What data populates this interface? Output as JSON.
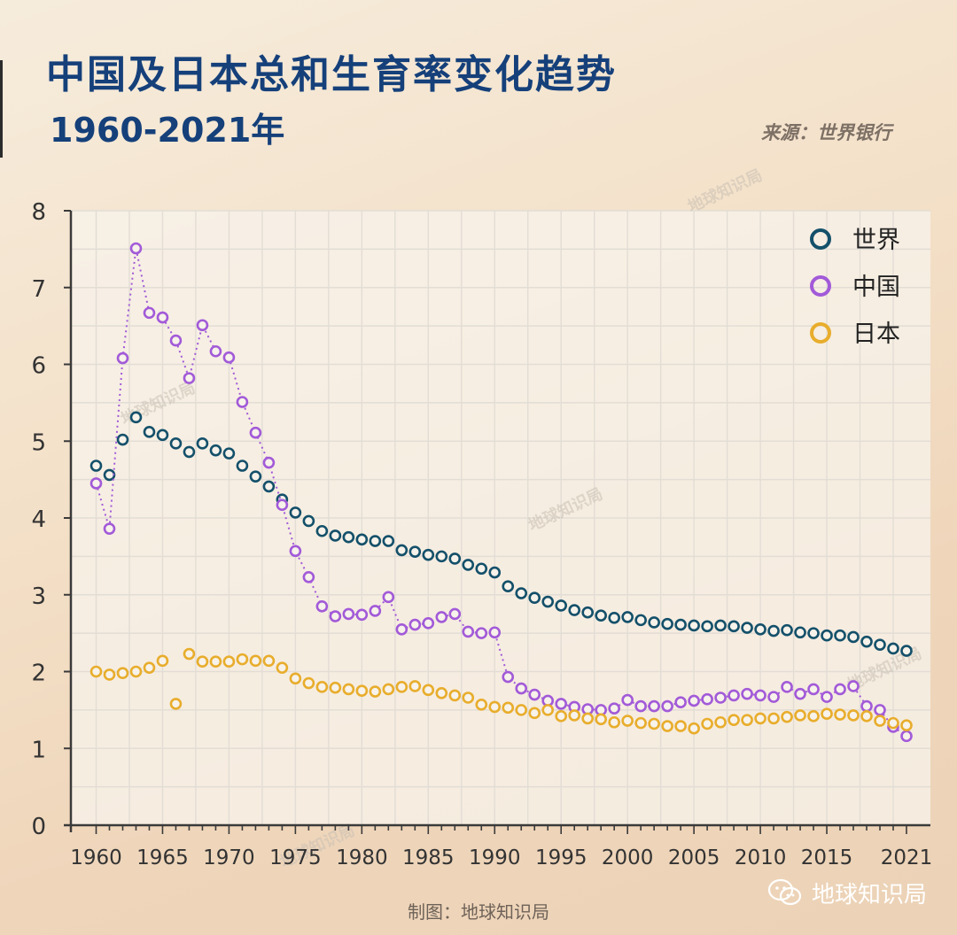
{
  "header": {
    "title": "中国及日本总和生育率变化趋势",
    "subtitle": "1960-2021年",
    "source": "来源：世界银行"
  },
  "footer": {
    "credit": "制图：地球知识局",
    "brand": "地球知识局"
  },
  "watermark": "地球知识局",
  "colors": {
    "world": "#14506a",
    "china": "#a25ad8",
    "japan": "#e8ad2c",
    "grid": "#e2ddd5",
    "axis": "#3a3a3a",
    "title": "#15407a"
  },
  "chart_data": {
    "type": "scatter",
    "title": "中国及日本总和生育率变化趋势",
    "subtitle": "1960-2021年",
    "xlabel": "",
    "ylabel": "",
    "xlim": [
      1958,
      2022
    ],
    "ylim": [
      0,
      8
    ],
    "x_ticks": [
      1960,
      1965,
      1970,
      1975,
      1980,
      1985,
      1990,
      1995,
      2000,
      2005,
      2010,
      2015,
      2021
    ],
    "x_tick_labels": [
      "1960",
      "1965",
      "1970",
      "1975",
      "1980",
      "1985",
      "1990",
      "1995",
      "2000",
      "2005",
      "2010",
      "2015",
      "2021"
    ],
    "y_ticks": [
      0,
      1,
      2,
      3,
      4,
      5,
      6,
      7,
      8
    ],
    "y_tick_labels": [
      "0",
      "1",
      "2",
      "3",
      "4",
      "5",
      "6",
      "7",
      "8"
    ],
    "grid": true,
    "legend_position": "top-right",
    "x": [
      1960,
      1961,
      1962,
      1963,
      1964,
      1965,
      1966,
      1967,
      1968,
      1969,
      1970,
      1971,
      1972,
      1973,
      1974,
      1975,
      1976,
      1977,
      1978,
      1979,
      1980,
      1981,
      1982,
      1983,
      1984,
      1985,
      1986,
      1987,
      1988,
      1989,
      1990,
      1991,
      1992,
      1993,
      1994,
      1995,
      1996,
      1997,
      1998,
      1999,
      2000,
      2001,
      2002,
      2003,
      2004,
      2005,
      2006,
      2007,
      2008,
      2009,
      2010,
      2011,
      2012,
      2013,
      2014,
      2015,
      2016,
      2017,
      2018,
      2019,
      2020,
      2021
    ],
    "series": [
      {
        "name": "世界",
        "key": "world",
        "values": [
          4.68,
          4.56,
          5.02,
          5.31,
          5.12,
          5.08,
          4.97,
          4.86,
          4.97,
          4.88,
          4.84,
          4.68,
          4.54,
          4.41,
          4.24,
          4.07,
          3.96,
          3.83,
          3.77,
          3.75,
          3.72,
          3.7,
          3.7,
          3.58,
          3.56,
          3.52,
          3.5,
          3.47,
          3.39,
          3.34,
          3.29,
          3.11,
          3.02,
          2.96,
          2.91,
          2.86,
          2.8,
          2.77,
          2.73,
          2.7,
          2.71,
          2.67,
          2.64,
          2.62,
          2.61,
          2.6,
          2.59,
          2.6,
          2.59,
          2.57,
          2.55,
          2.53,
          2.54,
          2.51,
          2.5,
          2.47,
          2.47,
          2.45,
          2.39,
          2.35,
          2.3,
          2.27
        ]
      },
      {
        "name": "中国",
        "key": "china",
        "values": [
          4.45,
          3.86,
          6.08,
          7.51,
          6.67,
          6.61,
          6.31,
          5.82,
          6.51,
          6.17,
          6.09,
          5.51,
          5.11,
          4.72,
          4.17,
          3.57,
          3.23,
          2.85,
          2.72,
          2.75,
          2.74,
          2.79,
          2.97,
          2.55,
          2.61,
          2.63,
          2.71,
          2.75,
          2.52,
          2.5,
          2.51,
          1.93,
          1.78,
          1.7,
          1.62,
          1.58,
          1.54,
          1.51,
          1.5,
          1.52,
          1.63,
          1.55,
          1.55,
          1.55,
          1.6,
          1.62,
          1.64,
          1.66,
          1.69,
          1.71,
          1.69,
          1.67,
          1.8,
          1.71,
          1.77,
          1.67,
          1.77,
          1.81,
          1.55,
          1.5,
          1.28,
          1.16
        ]
      },
      {
        "name": "日本",
        "key": "japan",
        "values": [
          2.0,
          1.96,
          1.98,
          2.0,
          2.05,
          2.14,
          1.58,
          2.23,
          2.13,
          2.13,
          2.13,
          2.16,
          2.14,
          2.14,
          2.05,
          1.91,
          1.85,
          1.8,
          1.79,
          1.77,
          1.75,
          1.74,
          1.77,
          1.8,
          1.81,
          1.76,
          1.72,
          1.69,
          1.66,
          1.57,
          1.54,
          1.53,
          1.5,
          1.46,
          1.5,
          1.42,
          1.43,
          1.39,
          1.38,
          1.34,
          1.36,
          1.33,
          1.32,
          1.29,
          1.29,
          1.26,
          1.32,
          1.34,
          1.37,
          1.37,
          1.39,
          1.39,
          1.41,
          1.43,
          1.42,
          1.45,
          1.44,
          1.43,
          1.42,
          1.36,
          1.33,
          1.3
        ]
      }
    ],
    "note": "中国 series drawn with dotted connecting line"
  }
}
